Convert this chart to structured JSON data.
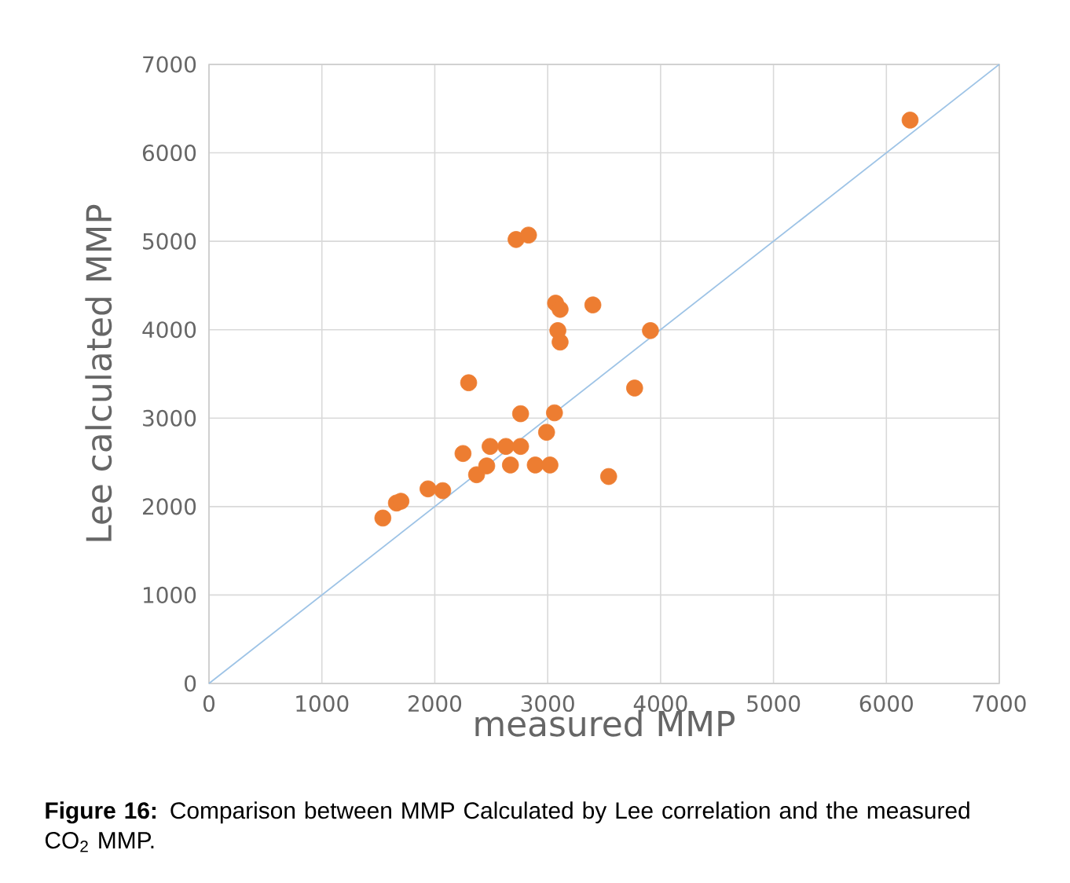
{
  "chart_data": {
    "type": "scatter",
    "xlabel": "measured MMP",
    "ylabel": "Lee calculated MMP",
    "annotations": [
      "**Figure 16:** Comparison between MMP Calculated by Lee correlation and the measured CO$_{2}$ MMP."
    ],
    "xlim": [
      0,
      7000
    ],
    "ylim": [
      0,
      7000
    ],
    "xticks": [
      0,
      1000,
      2000,
      3000,
      4000,
      5000,
      6000,
      7000
    ],
    "yticks": [
      0,
      1000,
      2000,
      3000,
      4000,
      5000,
      6000,
      7000
    ],
    "grid": true,
    "series": [
      {
        "type": "line",
        "marker": "none",
        "color": "#9dc3e6",
        "x": [
          0,
          7000
        ],
        "values": [
          0,
          7000
        ]
      },
      {
        "marker": "circle",
        "color": "#ed7d31",
        "x": [
          1540,
          1660,
          1700,
          1940,
          2070,
          2250,
          2300,
          2370,
          2460,
          2490,
          2630,
          2670,
          2760,
          2760,
          2720,
          2830,
          2890,
          3020,
          2990,
          3060,
          3070,
          3110,
          3090,
          3110,
          3400,
          3540,
          3770,
          3910,
          6210
        ],
        "values": [
          1870,
          2040,
          2060,
          2200,
          2180,
          2600,
          3400,
          2360,
          2460,
          2680,
          2680,
          2470,
          2680,
          3050,
          5020,
          5070,
          2470,
          2470,
          2840,
          3060,
          4300,
          4230,
          3990,
          3860,
          4280,
          2340,
          3340,
          3990,
          6370
        ]
      }
    ]
  }
}
